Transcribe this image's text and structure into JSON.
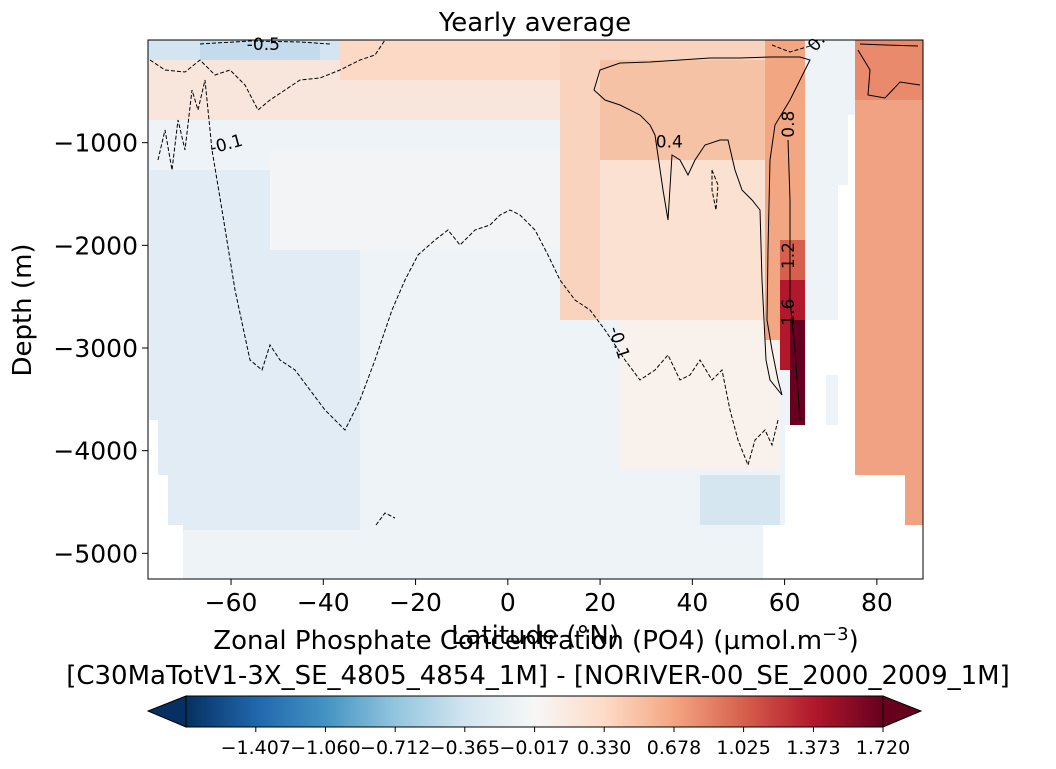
{
  "chart_data": {
    "type": "heatmap",
    "title": "Yearly average",
    "xlabel": "Latitude (°N)",
    "ylabel": "Depth (m)",
    "xlim": [
      -78,
      90
    ],
    "ylim": [
      -5250,
      0
    ],
    "x_ticks": [
      -60,
      -40,
      -20,
      0,
      20,
      40,
      60,
      80
    ],
    "x_tick_labels": [
      "−60",
      "−40",
      "−20",
      "0",
      "20",
      "40",
      "60",
      "80"
    ],
    "y_ticks": [
      -1000,
      -2000,
      -3000,
      -4000,
      -5000
    ],
    "y_tick_labels": [
      "−1000",
      "−2000",
      "−3000",
      "−4000",
      "−5000"
    ],
    "colorbar": {
      "label_line1": "Zonal Phosphate Concentration (PO4) (µmol.m",
      "label_sup": "−3",
      "label_close": ")",
      "label_line2": "[C30MaTotV1-3X_SE_4805_4854_1M] - [NORIVER-00_SE_2000_2009_1M]",
      "colormap": "RdBu_r",
      "vmin": -1.755,
      "vmax": 1.72,
      "extend": "both",
      "ticks": [
        -1.407,
        -1.06,
        -0.712,
        -0.365,
        -0.017,
        0.33,
        0.678,
        1.025,
        1.373,
        1.72
      ],
      "tick_labels": [
        "−1.407",
        "−1.060",
        "−0.712",
        "−0.365",
        "−0.017",
        "0.330",
        "0.678",
        "1.025",
        "1.373",
        "1.720"
      ]
    },
    "contour_labels": [
      {
        "text": "-0.5",
        "lat": -53,
        "depth": -50,
        "angle": 0
      },
      {
        "text": "-0.1",
        "lat": -61,
        "depth": -1020,
        "angle": -15
      },
      {
        "text": "0.4",
        "lat": 35,
        "depth": -1000,
        "angle": 0
      },
      {
        "text": "0.8",
        "lat": 61,
        "depth": -820,
        "angle": -90
      },
      {
        "text": "1.2",
        "lat": 61,
        "depth": -2100,
        "angle": -90
      },
      {
        "text": "1.6",
        "lat": 61,
        "depth": -2650,
        "angle": -90
      },
      {
        "text": "-0.1",
        "lat": 24,
        "depth": -2950,
        "angle": 72
      },
      {
        "text": "0.",
        "lat": 67,
        "depth": -30,
        "angle": -50
      }
    ]
  }
}
